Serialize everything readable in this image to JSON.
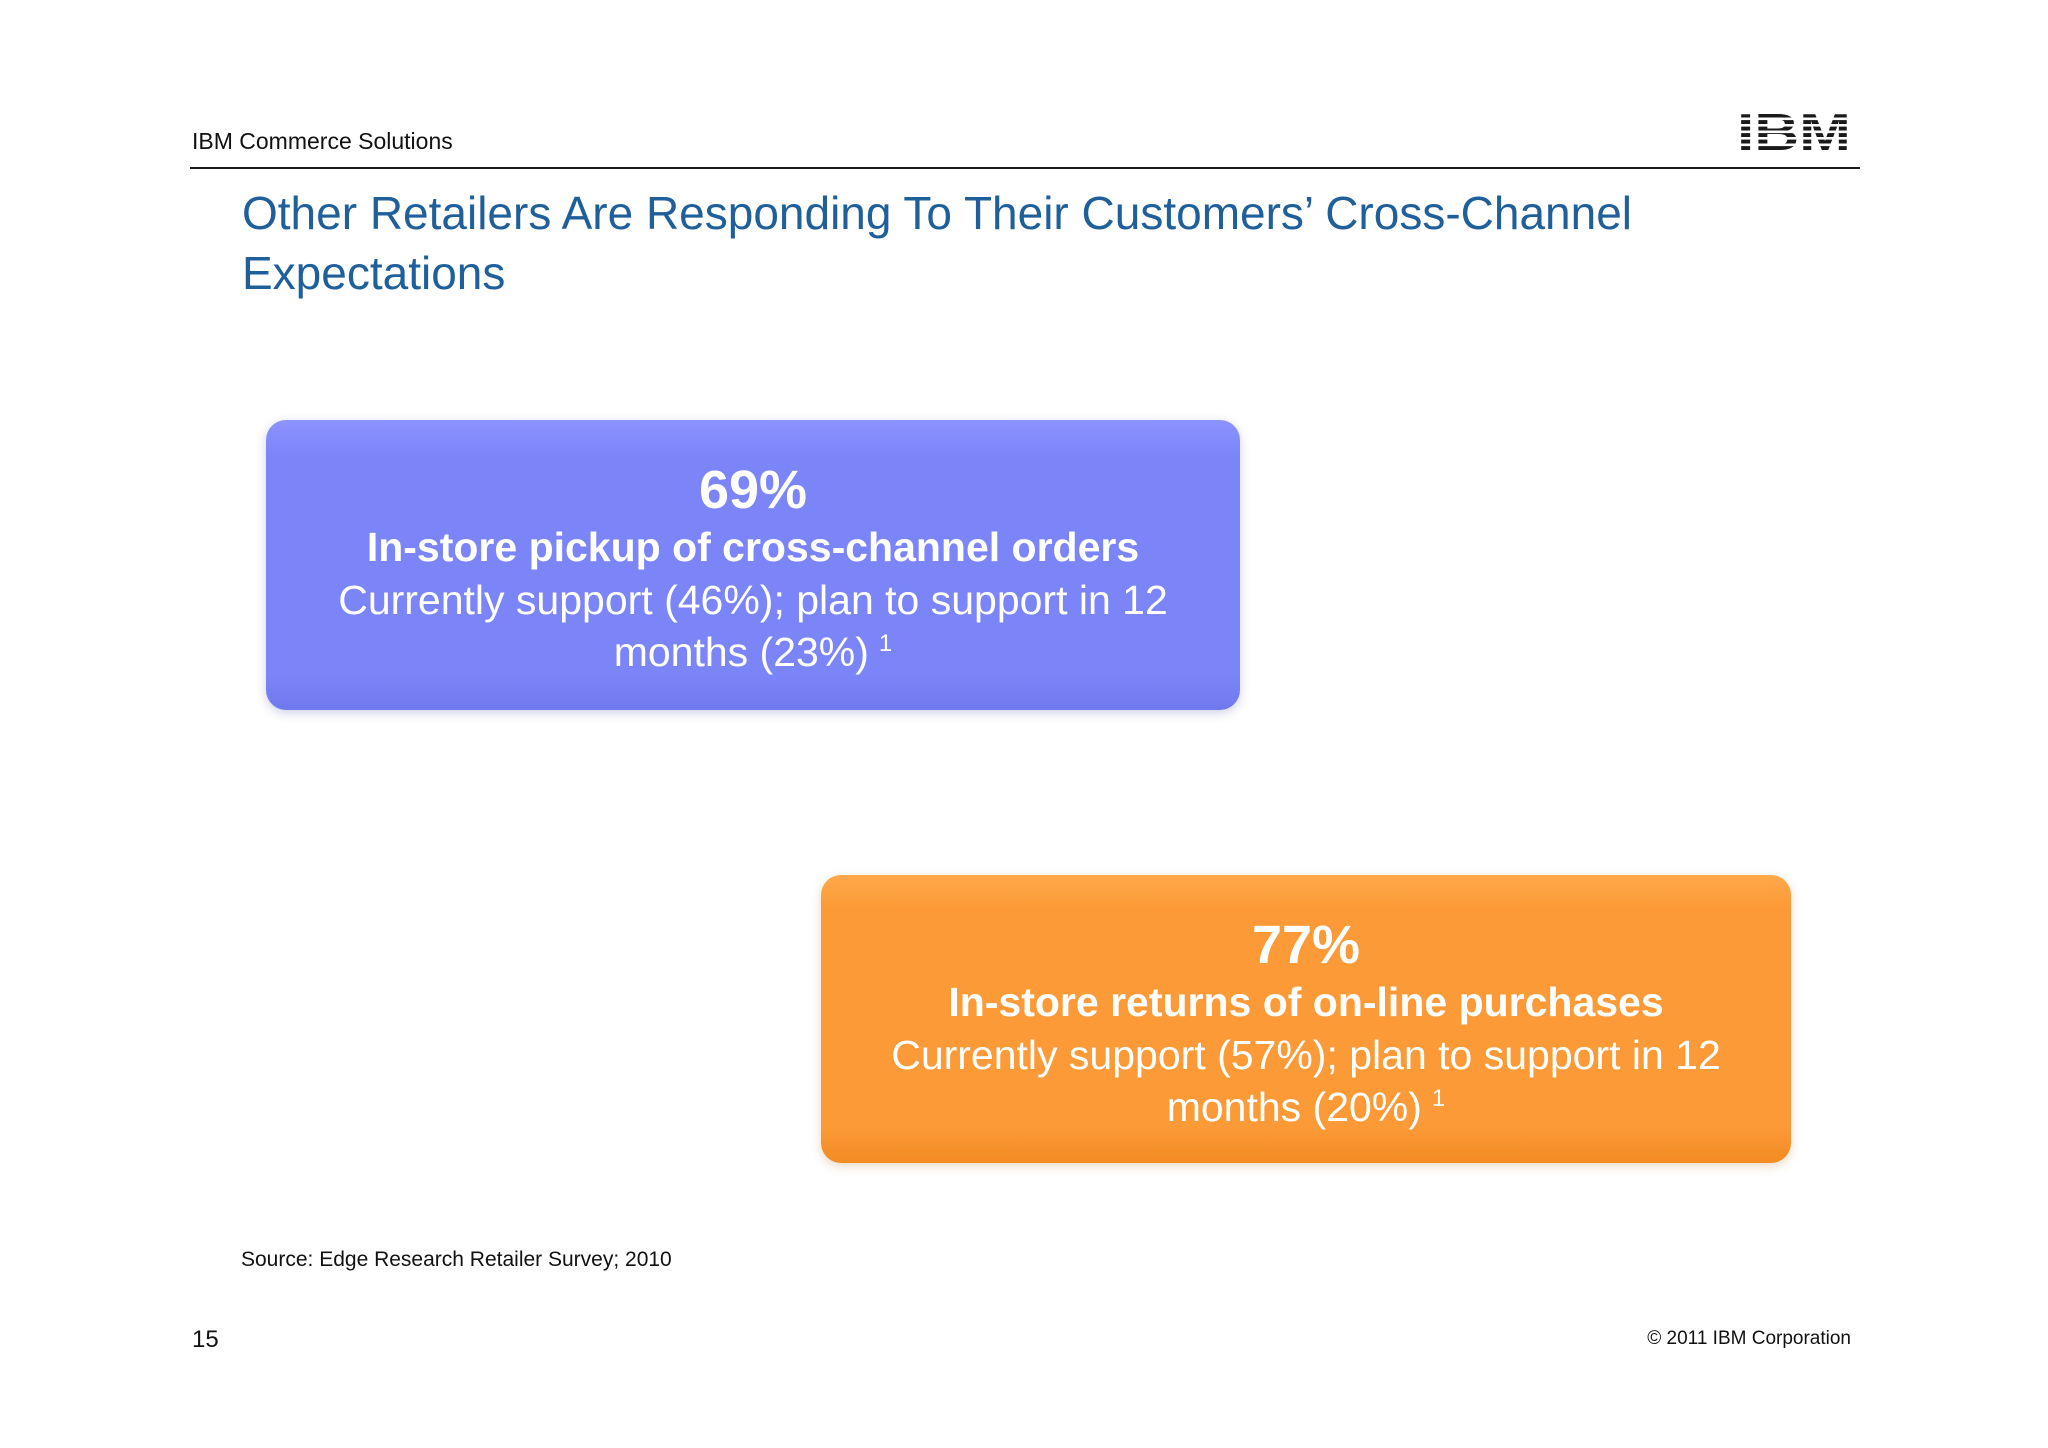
{
  "header": {
    "label": "IBM Commerce Solutions",
    "logo_text": "IBM"
  },
  "slide": {
    "title": "Other Retailers Are Responding To Their Customers’ Cross-Channel Expectations",
    "callouts": [
      {
        "percent": "69%",
        "heading": "In-store pickup of cross-channel orders",
        "description": "Currently support (46%); plan to support in 12 months (23%)",
        "footnote": "1",
        "color": "#7b85f7"
      },
      {
        "percent": "77%",
        "heading": "In-store returns of on-line purchases",
        "description": "Currently support (57%); plan to support in 12 months (20%)",
        "footnote": "1",
        "color": "#fb9a36"
      }
    ],
    "source": "Source:  Edge Research Retailer Survey; 2010"
  },
  "footer": {
    "page_number": "15",
    "copyright": "© 2011 IBM Corporation"
  },
  "colors": {
    "title": "#1f5f9a",
    "logo": "#1a1a1a"
  }
}
